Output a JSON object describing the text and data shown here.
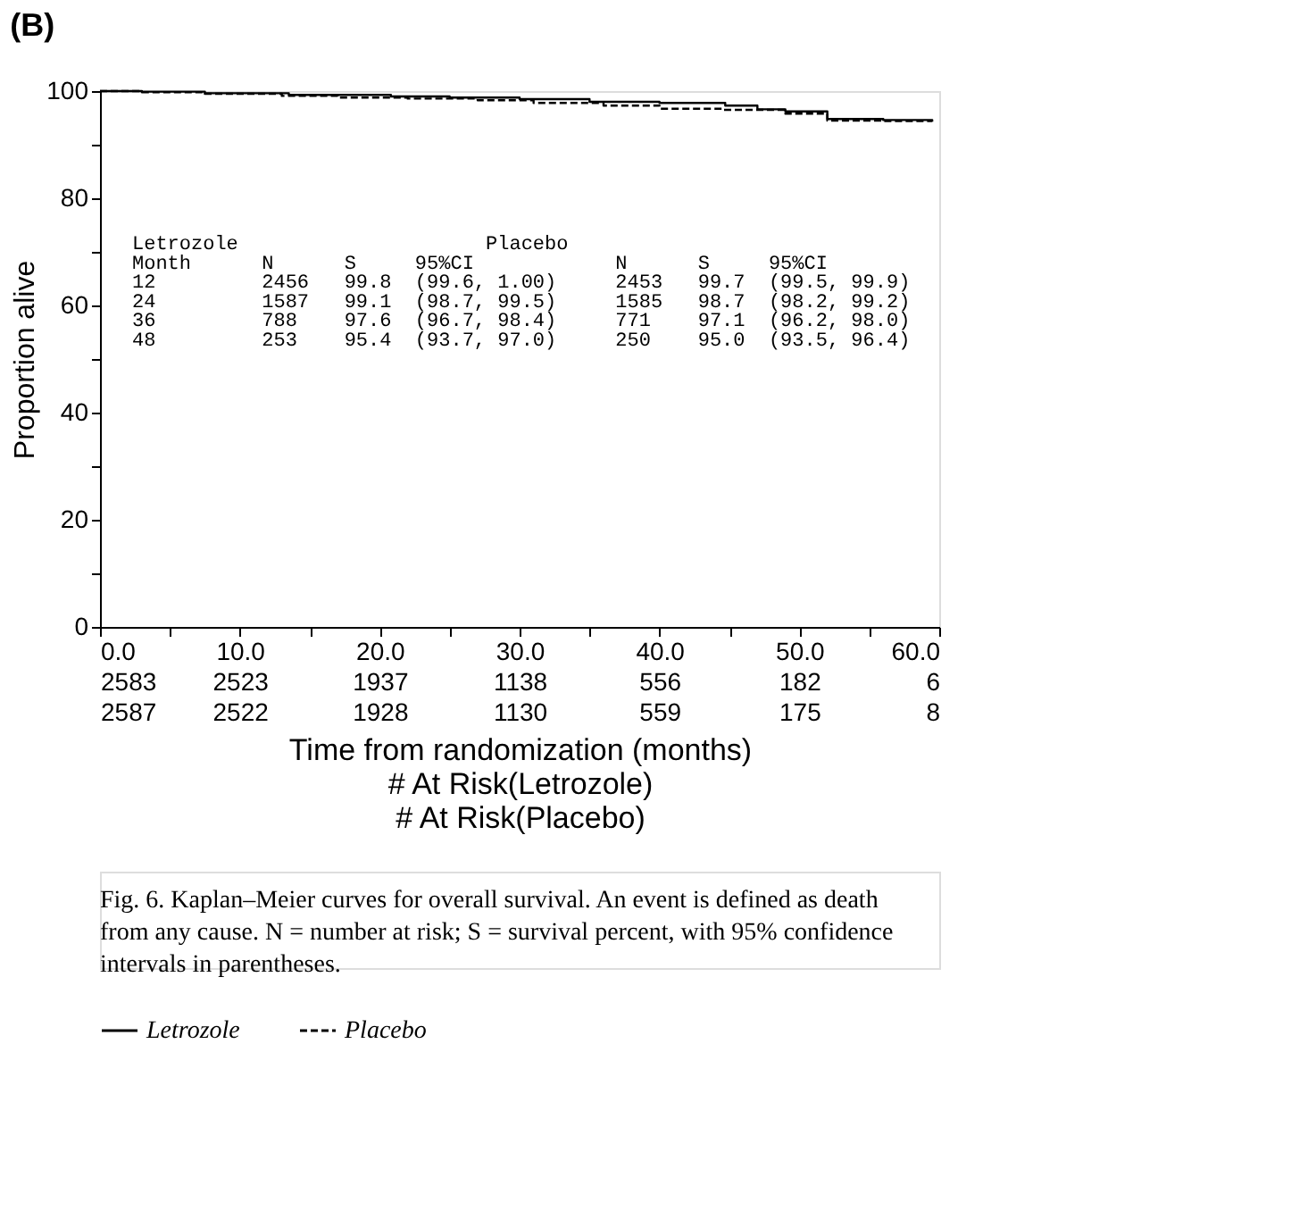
{
  "chart_data": {
    "type": "step",
    "title": "(B)",
    "xlabel": "Time from randomization (months)",
    "ylabel": "Proportion alive",
    "xlim": [
      0,
      60
    ],
    "ylim": [
      0,
      100
    ],
    "xticks": [
      {
        "value": 0,
        "label": "0.0"
      },
      {
        "value": 5,
        "label": null
      },
      {
        "value": 10,
        "label": "10.0"
      },
      {
        "value": 15,
        "label": null
      },
      {
        "value": 20,
        "label": "20.0"
      },
      {
        "value": 25,
        "label": null
      },
      {
        "value": 30,
        "label": "30.0"
      },
      {
        "value": 35,
        "label": null
      },
      {
        "value": 40,
        "label": "40.0"
      },
      {
        "value": 45,
        "label": null
      },
      {
        "value": 50,
        "label": "50.0"
      },
      {
        "value": 55,
        "label": null
      },
      {
        "value": 60,
        "label": "60.0"
      }
    ],
    "yticks": [
      0,
      {
        "value": 10,
        "label": null
      },
      20,
      {
        "value": 30,
        "label": null
      },
      40,
      {
        "value": 50,
        "label": null
      },
      60,
      {
        "value": 70,
        "label": null
      },
      80,
      {
        "value": 90,
        "label": null
      },
      100
    ],
    "series": [
      {
        "name": "Letrozole",
        "color": "#000000",
        "line_style": "solid",
        "x": [
          0,
          3,
          7.5,
          13.5,
          20.8,
          25,
          30,
          35,
          40,
          44.7,
          47,
          49,
          52,
          56,
          59.5
        ],
        "values": [
          100,
          99.9,
          99.6,
          99.3,
          99.0,
          98.8,
          98.5,
          98.0,
          97.8,
          97.3,
          96.6,
          96.2,
          94.8,
          94.6,
          94.5
        ]
      },
      {
        "name": "Placebo",
        "color": "#000000",
        "line_style": "dashed",
        "x": [
          0,
          3,
          7.5,
          13,
          17,
          22,
          27,
          31,
          36,
          40,
          44.5,
          49,
          52,
          56,
          59.5
        ],
        "values": [
          100,
          99.8,
          99.5,
          99.1,
          98.8,
          98.6,
          98.3,
          97.8,
          97.3,
          96.7,
          96.5,
          95.8,
          94.5,
          94.4,
          94.3
        ]
      }
    ],
    "legend": "bottom",
    "grid": false,
    "annotations": [
      "           Letrozole                     Placebo",
      "Month      N      S     95%CI            N      S     95%CI",
      "12         2456   99.8  (99.6, 1.00)     2453   99.7  (99.5, 99.9)",
      "24         1587   99.1  (98.7, 99.5)     1585   98.7  (98.2, 99.2)",
      "36         788    97.6  (96.7, 98.4)     771    97.1  (96.2, 98.0)",
      "48         253    95.4  (93.7, 97.0)     250    95.0  (93.5, 96.4)",
      "2583 2523 1937 1138 556 182 6",
      "2587 2522 1928 1130 559 175 8",
      "# At Risk(Letrozole)",
      "# At Risk(Placebo)",
      "Fig. 6. Kaplan–Meier curves for overall survival. An event is defined as death from any cause. N = number at risk; S = survival percent, with 95% confidence intervals in parentheses."
    ]
  }
}
